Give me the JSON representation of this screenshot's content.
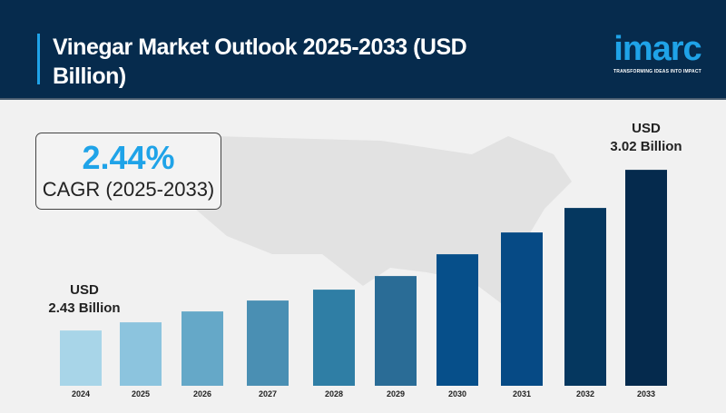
{
  "header": {
    "title": "Vinegar Market Outlook 2025-2033 (USD Billion)",
    "logo_word": "imarc",
    "logo_tagline": "TRANSFORMING IDEAS INTO IMPACT"
  },
  "cagr": {
    "value": "2.44%",
    "label": "CAGR (2025-2033)"
  },
  "annotations": {
    "start": {
      "line1": "USD",
      "line2": "2.43 Billion"
    },
    "end": {
      "line1": "USD",
      "line2": "3.02 Billion"
    }
  },
  "colors": {
    "header_bg": "#062b4d",
    "accent": "#1fa3e8"
  },
  "chart_data": {
    "type": "bar",
    "categories": [
      "2024",
      "2025",
      "2026",
      "2027",
      "2028",
      "2029",
      "2030",
      "2031",
      "2032",
      "2033"
    ],
    "values": [
      2.43,
      2.46,
      2.5,
      2.54,
      2.58,
      2.63,
      2.71,
      2.79,
      2.88,
      3.02
    ],
    "ylabel": "",
    "xlabel": "",
    "grid": false,
    "legend": "none",
    "bar_colors": [
      "#a8d5e8",
      "#8cc4de",
      "#65a8c8",
      "#4a8fb3",
      "#2f7ea5",
      "#2a6c96",
      "#064f8a",
      "#064a85",
      "#05375f",
      "#052a4d"
    ]
  }
}
